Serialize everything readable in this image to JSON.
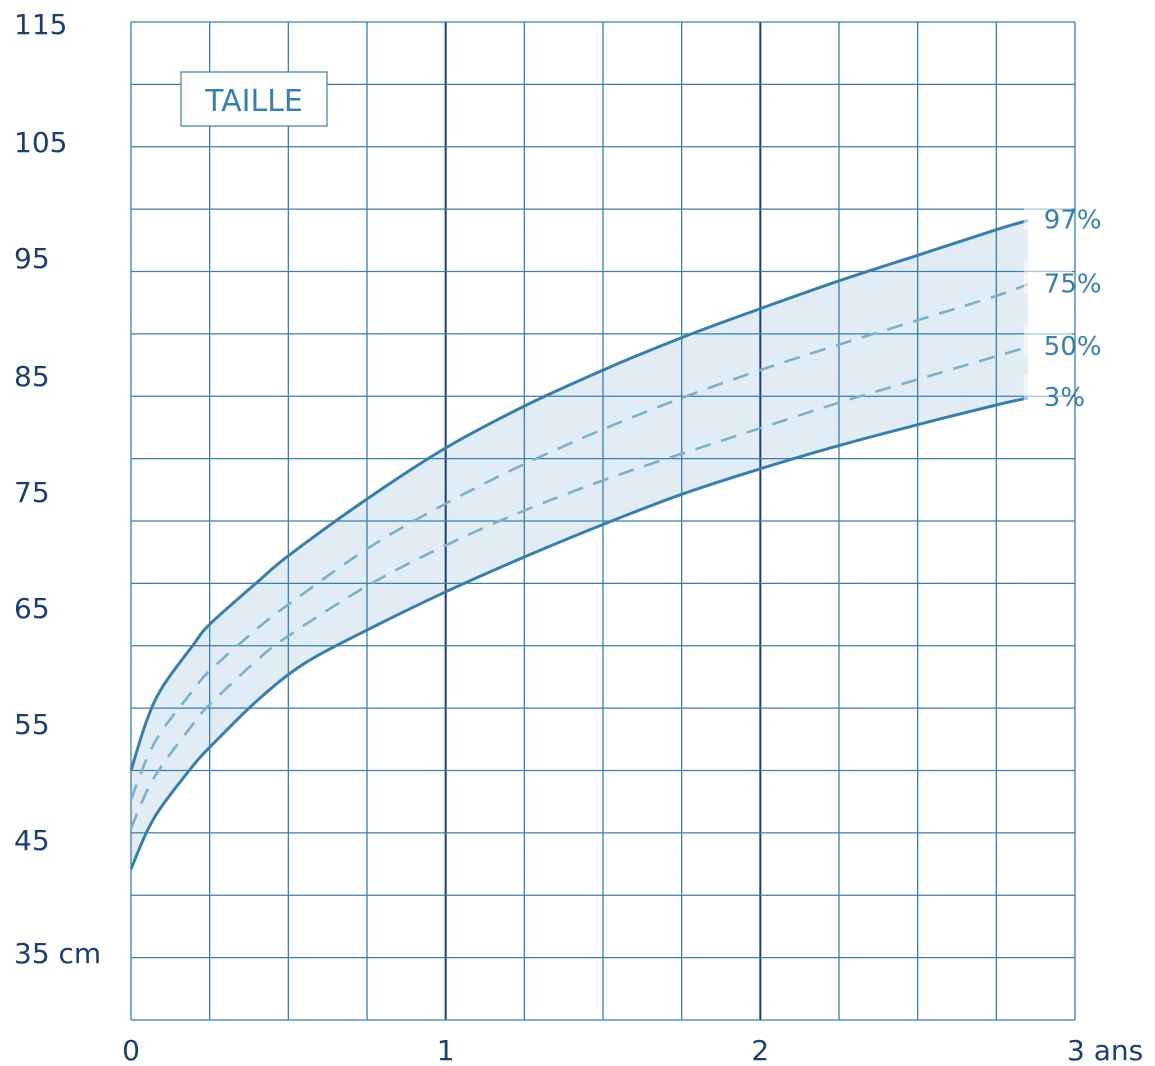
{
  "chart_data": {
    "type": "line",
    "title": "TAILLE",
    "x_ticks": [
      {
        "value": 0,
        "label": "0"
      },
      {
        "value": 1,
        "label": "1"
      },
      {
        "value": 2,
        "label": "2"
      },
      {
        "value": 3,
        "label": "3 ans"
      }
    ],
    "y_ticks": [
      {
        "value": 35,
        "label": "35 cm"
      },
      {
        "value": 45,
        "label": "45"
      },
      {
        "value": 55,
        "label": "55"
      },
      {
        "value": 65,
        "label": "65"
      },
      {
        "value": 75,
        "label": "75"
      },
      {
        "value": 85,
        "label": "85"
      },
      {
        "value": 95,
        "label": "95"
      },
      {
        "value": 105,
        "label": "105"
      },
      {
        "value": 115,
        "label": "115"
      }
    ],
    "xlim": [
      0,
      3
    ],
    "ylim": [
      30,
      116
    ],
    "grid": true,
    "grid_x_step": 0.25,
    "grid_y_step": 5.4,
    "grid_major_x": [
      1,
      2
    ],
    "series": [
      {
        "name": "97%",
        "label": "97%",
        "style": "solid",
        "color": "#3a7fa8",
        "x": [
          0,
          0.05,
          0.1,
          0.2,
          0.25,
          0.4,
          0.5,
          0.75,
          1,
          1.25,
          1.5,
          1.75,
          2,
          2.25,
          2.5,
          2.75,
          2.85
        ],
        "y": [
          51.5,
          55.8,
          58.7,
          62.4,
          64.1,
          67.7,
          70,
          74.9,
          79.3,
          82.9,
          86,
          88.8,
          91.3,
          93.7,
          95.9,
          98.1,
          98.9
        ]
      },
      {
        "name": "75%",
        "label": "75%",
        "style": "dashed",
        "color": "#7fb0cc",
        "x": [
          0,
          0.05,
          0.1,
          0.2,
          0.25,
          0.4,
          0.5,
          0.75,
          1,
          1.25,
          1.5,
          1.75,
          2,
          2.25,
          2.5,
          2.75,
          2.85
        ],
        "y": [
          49,
          52.5,
          55,
          58.5,
          60.1,
          63.7,
          65.8,
          70.6,
          74.5,
          77.9,
          80.9,
          83.6,
          86,
          88.2,
          90.3,
          92.4,
          93.4
        ]
      },
      {
        "name": "50%",
        "label": "50%",
        "style": "dashed",
        "color": "#7fb0cc",
        "x": [
          0,
          0.05,
          0.1,
          0.2,
          0.25,
          0.4,
          0.5,
          0.75,
          1,
          1.25,
          1.5,
          1.75,
          2,
          2.25,
          2.5,
          2.75,
          2.85
        ],
        "y": [
          46.5,
          49.7,
          52,
          55.6,
          57.2,
          61,
          63.1,
          67.4,
          70.9,
          73.9,
          76.5,
          78.8,
          81,
          83.2,
          85.2,
          87.2,
          88
        ]
      },
      {
        "name": "3%",
        "label": "3%",
        "style": "solid",
        "color": "#3a7fa8",
        "x": [
          0,
          0.05,
          0.1,
          0.2,
          0.25,
          0.4,
          0.55,
          0.75,
          1,
          1.25,
          1.5,
          1.75,
          2,
          2.25,
          2.5,
          2.75,
          2.85
        ],
        "y": [
          43,
          46.2,
          48.5,
          52,
          53.5,
          57.5,
          60.7,
          63.6,
          66.9,
          69.9,
          72.7,
          75.3,
          77.5,
          79.5,
          81.3,
          83,
          83.6
        ]
      }
    ],
    "band_between": [
      "97%",
      "3%"
    ],
    "band_color": "#e1ecf4"
  }
}
